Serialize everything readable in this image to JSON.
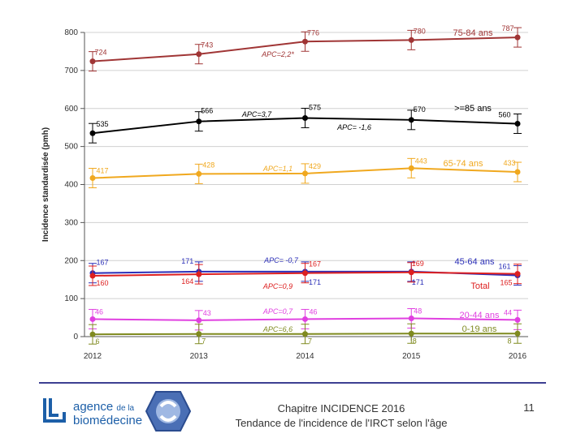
{
  "chart_data": {
    "type": "line",
    "ylabel": "Incidence standardisée (pmh)",
    "x": [
      "2012",
      "2013",
      "2014",
      "2015",
      "2016"
    ],
    "y_ticks": [
      "0",
      "100",
      "200",
      "300",
      "400",
      "500",
      "600",
      "700",
      "800"
    ],
    "ylim": [
      0,
      800
    ],
    "grid": true,
    "series": [
      {
        "name": "75-84 ans",
        "color": "#a03535",
        "values": [
          724,
          743,
          776,
          780,
          787
        ],
        "labels": [
          "724",
          "743",
          "776",
          "780",
          "787"
        ],
        "apc": "APC=2,2*"
      },
      {
        "name": ">=85 ans",
        "color": "#000000",
        "values": [
          535,
          566,
          575,
          570,
          560
        ],
        "labels": [
          "535",
          "566",
          "575",
          "570",
          "560"
        ],
        "apc": "APC= -1,6",
        "apc2": "APC=3,7"
      },
      {
        "name": "65-74 ans",
        "color": "#f0a81e",
        "values": [
          417,
          428,
          429,
          443,
          433
        ],
        "labels": [
          "417",
          "428",
          "429",
          "443",
          "433"
        ],
        "apc": "APC=1,1"
      },
      {
        "name": "45-64 ans",
        "color": "#2b2fb8",
        "values": [
          167,
          171,
          171,
          171,
          161
        ],
        "labels": [
          "167",
          "171",
          "171",
          "171",
          "161"
        ],
        "apc": "APC= -0,7"
      },
      {
        "name": "Total",
        "color": "#dd2020",
        "values": [
          160,
          164,
          167,
          169,
          165
        ],
        "labels": [
          "160",
          "164",
          "167",
          "169",
          "165"
        ],
        "apc": "APC=0,9"
      },
      {
        "name": "20-44 ans",
        "color": "#e040e0",
        "values": [
          46,
          43,
          46,
          48,
          44
        ],
        "labels": [
          "46",
          "43",
          "46",
          "48",
          "44"
        ],
        "apc": "APC=0,7"
      },
      {
        "name": "0-19 ans",
        "color": "#7f8a1f",
        "values": [
          6,
          7,
          7,
          8,
          8
        ],
        "labels": [
          "6",
          "7",
          "7",
          "8",
          "8"
        ],
        "apc": "APC=6,6"
      }
    ]
  },
  "footer": {
    "logo_line1": "agence",
    "logo_line1_small": "de la",
    "logo_line2": "biomédecine",
    "caption_line1": "Chapitre INCIDENCE 2016",
    "caption_line2": "Tendance de l'incidence de l'IRCT selon l'âge",
    "page_number": "11"
  }
}
